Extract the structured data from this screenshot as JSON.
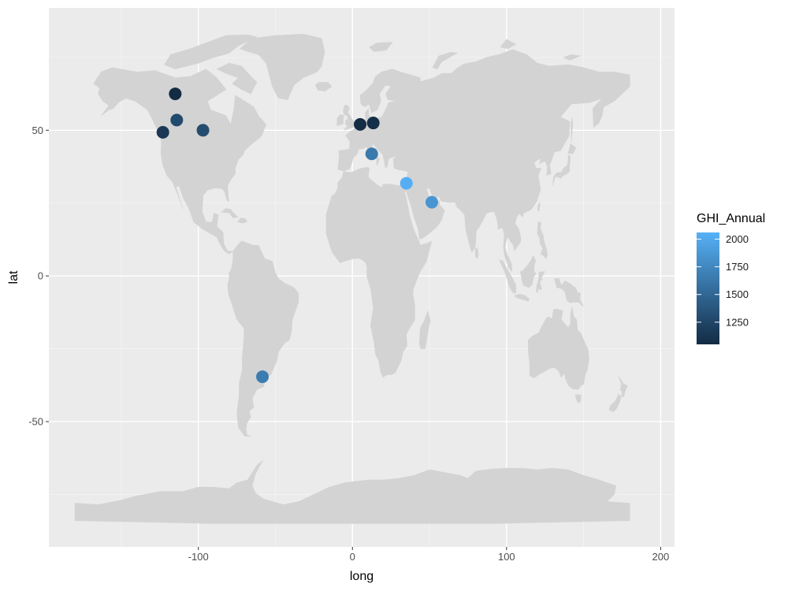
{
  "chart_data": {
    "type": "scatter",
    "background_map": "world",
    "xlabel": "long",
    "ylabel": "lat",
    "xlim": [
      -197,
      209
    ],
    "ylim": [
      -93,
      92
    ],
    "x_major_ticks": [
      -100,
      0,
      100,
      200
    ],
    "x_minor_ticks": [
      -150,
      -50,
      50,
      150
    ],
    "y_major_ticks": [
      -50,
      0,
      50
    ],
    "y_minor_ticks": [
      -75,
      -25,
      25,
      75
    ],
    "x_tick_labels": [
      "-100",
      "0",
      "100",
      "200"
    ],
    "y_tick_labels": [
      "-50",
      "0",
      "50"
    ],
    "grid": true,
    "color_scale": {
      "name": "GHI_Annual",
      "low_color": "#132B43",
      "high_color": "#56B1F7",
      "min": 1050,
      "max": 2060,
      "breaks": [
        1250,
        1500,
        1750,
        2000
      ],
      "break_labels": [
        "1250",
        "1500",
        "1750",
        "2000"
      ],
      "legend_position": "right"
    },
    "points": [
      {
        "long": -115,
        "lat": 62.5,
        "ghi": 1050
      },
      {
        "long": -114,
        "lat": 53.5,
        "ghi": 1280
      },
      {
        "long": -123,
        "lat": 49.3,
        "ghi": 1150
      },
      {
        "long": -97,
        "lat": 50,
        "ghi": 1300
      },
      {
        "long": 5,
        "lat": 52,
        "ghi": 1060
      },
      {
        "long": 13.5,
        "lat": 52.5,
        "ghi": 1080
      },
      {
        "long": 12.5,
        "lat": 41.9,
        "ghi": 1640
      },
      {
        "long": 35,
        "lat": 31.8,
        "ghi": 2040
      },
      {
        "long": 51.5,
        "lat": 25.3,
        "ghi": 1850
      },
      {
        "long": -58.4,
        "lat": -34.6,
        "ghi": 1660
      }
    ]
  }
}
